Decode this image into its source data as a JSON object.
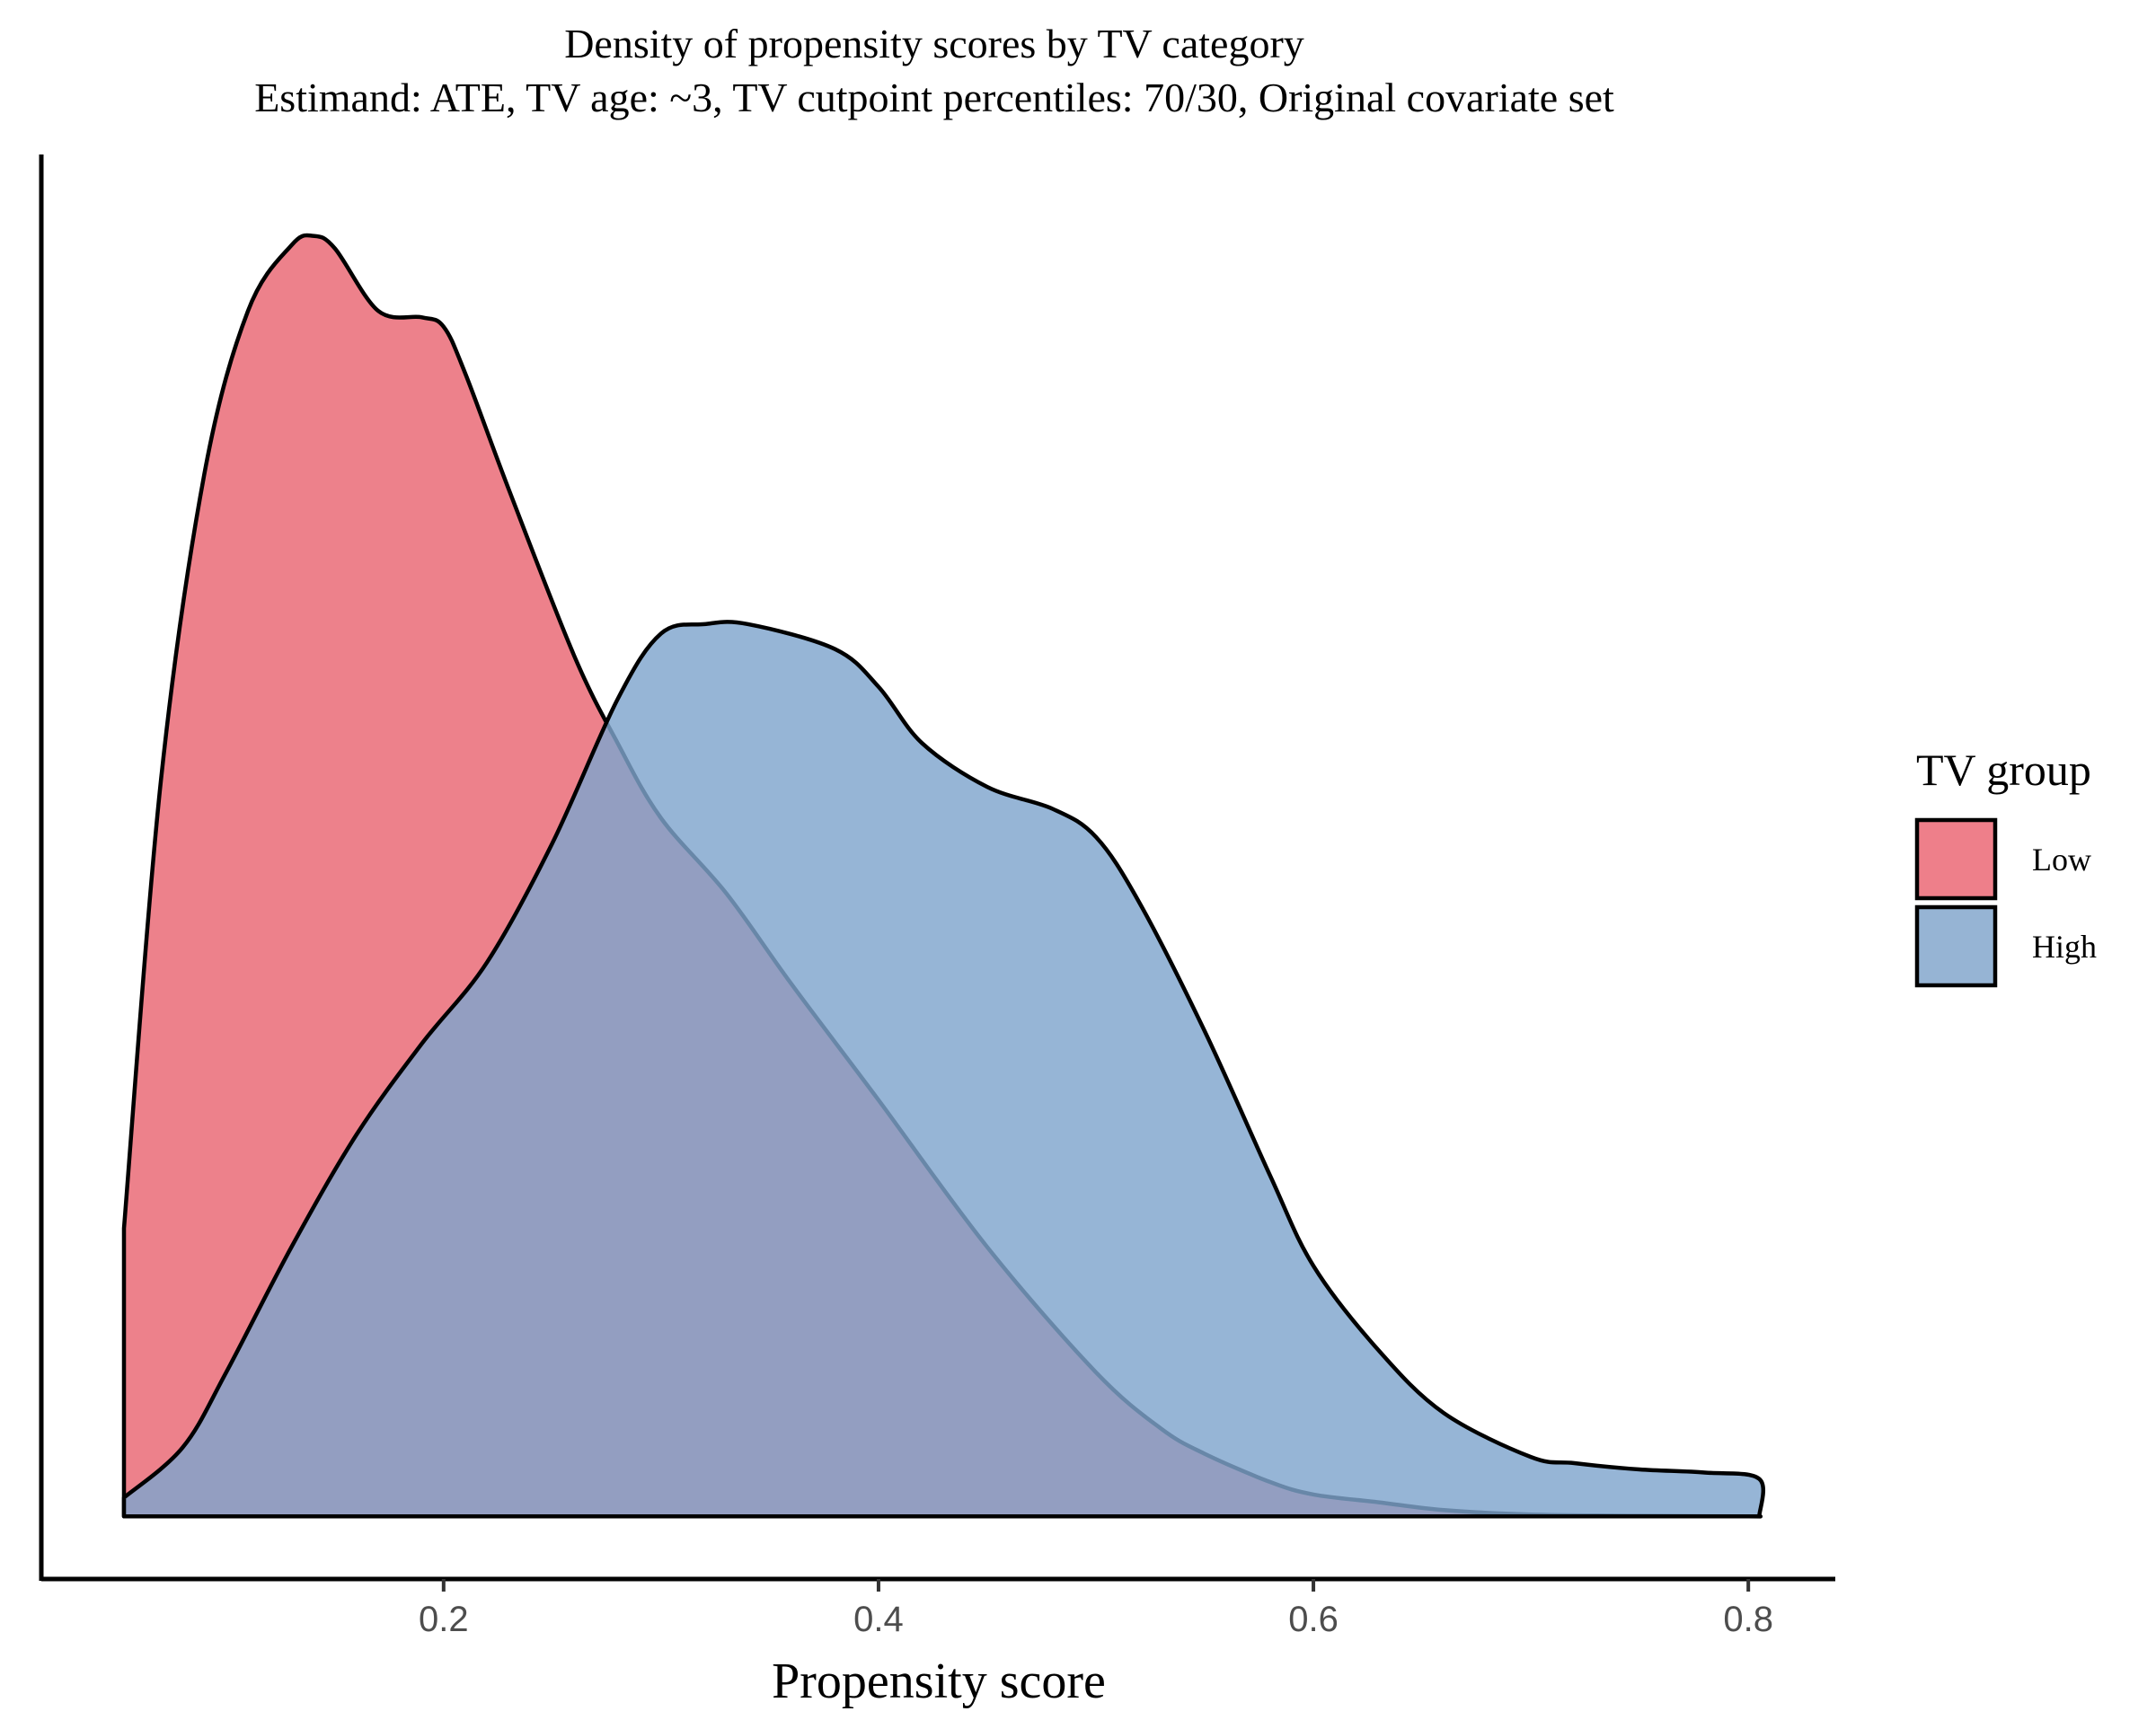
{
  "chart_data": {
    "type": "area",
    "title": "Density of propensity scores by TV category",
    "subtitle": "Estimand: ATE, TV age: ~3, TV cutpoint percentiles: 70/30, Original covariate set",
    "xlabel": "Propensity score",
    "ylabel": "",
    "xlim": [
      0.015,
      0.84
    ],
    "ylim": [
      -0.2,
      4.35
    ],
    "x_ticks": [
      0.2,
      0.4,
      0.6,
      0.8
    ],
    "x_tick_labels": [
      "0.2",
      "0.4",
      "0.6",
      "0.8"
    ],
    "y_ticks_shown": false,
    "grid": false,
    "legend": {
      "title": "TV group",
      "position": "right",
      "entries": [
        {
          "label": "Low",
          "color": "#EE7F8A"
        },
        {
          "label": "High",
          "color": "#96B4D4"
        }
      ]
    },
    "series": [
      {
        "name": "Low",
        "fill": "#EB6F7B",
        "fill_opacity": 0.88,
        "x": [
          0.053,
          0.07,
          0.09,
          0.11,
          0.13,
          0.14,
          0.15,
          0.17,
          0.19,
          0.2,
          0.21,
          0.23,
          0.26,
          0.28,
          0.3,
          0.33,
          0.36,
          0.4,
          0.45,
          0.5,
          0.53,
          0.55,
          0.58,
          0.6,
          0.63,
          0.66,
          0.7,
          0.75,
          0.8,
          0.805
        ],
        "y": [
          0.92,
          2.35,
          3.33,
          3.85,
          4.06,
          4.09,
          4.05,
          3.85,
          3.83,
          3.8,
          3.65,
          3.28,
          2.75,
          2.47,
          2.23,
          1.99,
          1.7,
          1.33,
          0.86,
          0.46,
          0.28,
          0.2,
          0.11,
          0.07,
          0.045,
          0.02,
          0.006,
          0.002,
          0.0,
          0.0
        ]
      },
      {
        "name": "High",
        "fill": "#7FA5CD",
        "fill_opacity": 0.82,
        "x": [
          0.053,
          0.08,
          0.1,
          0.13,
          0.16,
          0.19,
          0.22,
          0.25,
          0.28,
          0.3,
          0.32,
          0.34,
          0.38,
          0.4,
          0.42,
          0.45,
          0.48,
          0.5,
          0.52,
          0.55,
          0.58,
          0.6,
          0.63,
          0.66,
          0.7,
          0.72,
          0.75,
          0.78,
          0.805,
          0.805
        ],
        "y": [
          0.06,
          0.22,
          0.46,
          0.86,
          1.22,
          1.51,
          1.77,
          2.15,
          2.61,
          2.82,
          2.85,
          2.85,
          2.77,
          2.65,
          2.47,
          2.33,
          2.26,
          2.17,
          1.96,
          1.55,
          1.09,
          0.8,
          0.53,
          0.33,
          0.19,
          0.17,
          0.15,
          0.14,
          0.12,
          0.0
        ]
      }
    ]
  }
}
